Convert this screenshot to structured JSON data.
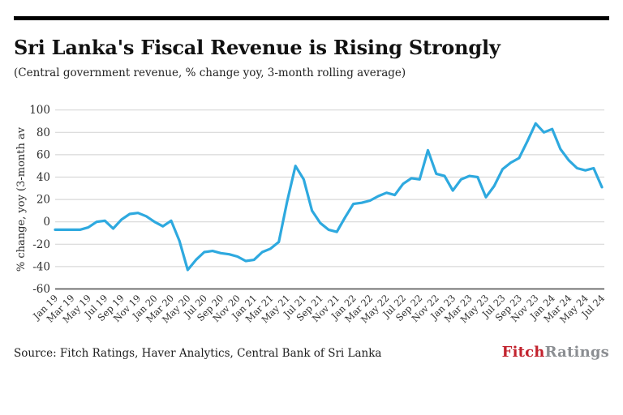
{
  "header": {
    "title": "Sri Lanka's Fiscal Revenue is Rising Strongly",
    "subtitle": "(Central government revenue, % change yoy, 3-month rolling average)"
  },
  "footer": {
    "source": "Source: Fitch Ratings, Haver Analytics, Central Bank of Sri Lanka",
    "logo_part1": "Fitch",
    "logo_part2": "Ratings"
  },
  "colors": {
    "line": "#2ea9df",
    "grid": "#d8d8d8",
    "axis": "#3a3a3a",
    "tick_text": "#2e2e2e",
    "top_rule": "#000000",
    "logo_red": "#c2232e",
    "logo_gray": "#8b8e92"
  },
  "chart_data": {
    "type": "line",
    "title": "Sri Lanka's Fiscal Revenue is Rising Strongly",
    "subtitle": "(Central government revenue, % change yoy, 3-month rolling average)",
    "xlabel": "",
    "ylabel": "% change, yoy (3-month av",
    "ylim": [
      -60,
      100
    ],
    "ytick_step": 20,
    "yticks": [
      100,
      80,
      60,
      40,
      20,
      0,
      -20,
      -40,
      -60
    ],
    "grid": "horizontal",
    "legend": "none",
    "x_tick_every": 2,
    "x": [
      "Jan 19",
      "Feb 19",
      "Mar 19",
      "Apr 19",
      "May 19",
      "Jun 19",
      "Jul 19",
      "Aug 19",
      "Sep 19",
      "Oct 19",
      "Nov 19",
      "Dec 19",
      "Jan 20",
      "Feb 20",
      "Mar 20",
      "Apr 20",
      "May 20",
      "Jun 20",
      "Jul 20",
      "Aug 20",
      "Sep 20",
      "Oct 20",
      "Nov 20",
      "Dec 20",
      "Jan 21",
      "Feb 21",
      "Mar 21",
      "Apr 21",
      "May 21",
      "Jun 21",
      "Jul 21",
      "Aug 21",
      "Sep 21",
      "Oct 21",
      "Nov 21",
      "Dec 21",
      "Jan 22",
      "Feb 22",
      "Mar 22",
      "Apr 22",
      "May 22",
      "Jun 22",
      "Jul 22",
      "Aug 22",
      "Sep 22",
      "Oct 22",
      "Nov 22",
      "Dec 22",
      "Jan 23",
      "Feb 23",
      "Mar 23",
      "Apr 23",
      "May 23",
      "Jun 23",
      "Jul 23",
      "Aug 23",
      "Sep 23",
      "Oct 23",
      "Nov 23",
      "Dec 23",
      "Jan 24",
      "Feb 24",
      "Mar 24",
      "Apr 24",
      "May 24",
      "Jun 24",
      "Jul 24"
    ],
    "series": [
      {
        "name": "Central government revenue, % change yoy (3-month rolling average)",
        "color": "#2ea9df",
        "values": [
          -7,
          -7,
          -7,
          -7,
          -5,
          0,
          1,
          -6,
          2,
          7,
          8,
          5,
          0,
          -4,
          1,
          -17,
          -43,
          -34,
          -27,
          -26,
          -28,
          -29,
          -31,
          -35,
          -34,
          -27,
          -24,
          -18,
          18,
          50,
          38,
          10,
          -1,
          -7,
          -9,
          4,
          16,
          17,
          19,
          23,
          26,
          24,
          34,
          39,
          38,
          64,
          43,
          41,
          28,
          38,
          41,
          40,
          22,
          32,
          47,
          53,
          57,
          72,
          88,
          80,
          83,
          65,
          55,
          48,
          46,
          48,
          31
        ]
      }
    ]
  }
}
